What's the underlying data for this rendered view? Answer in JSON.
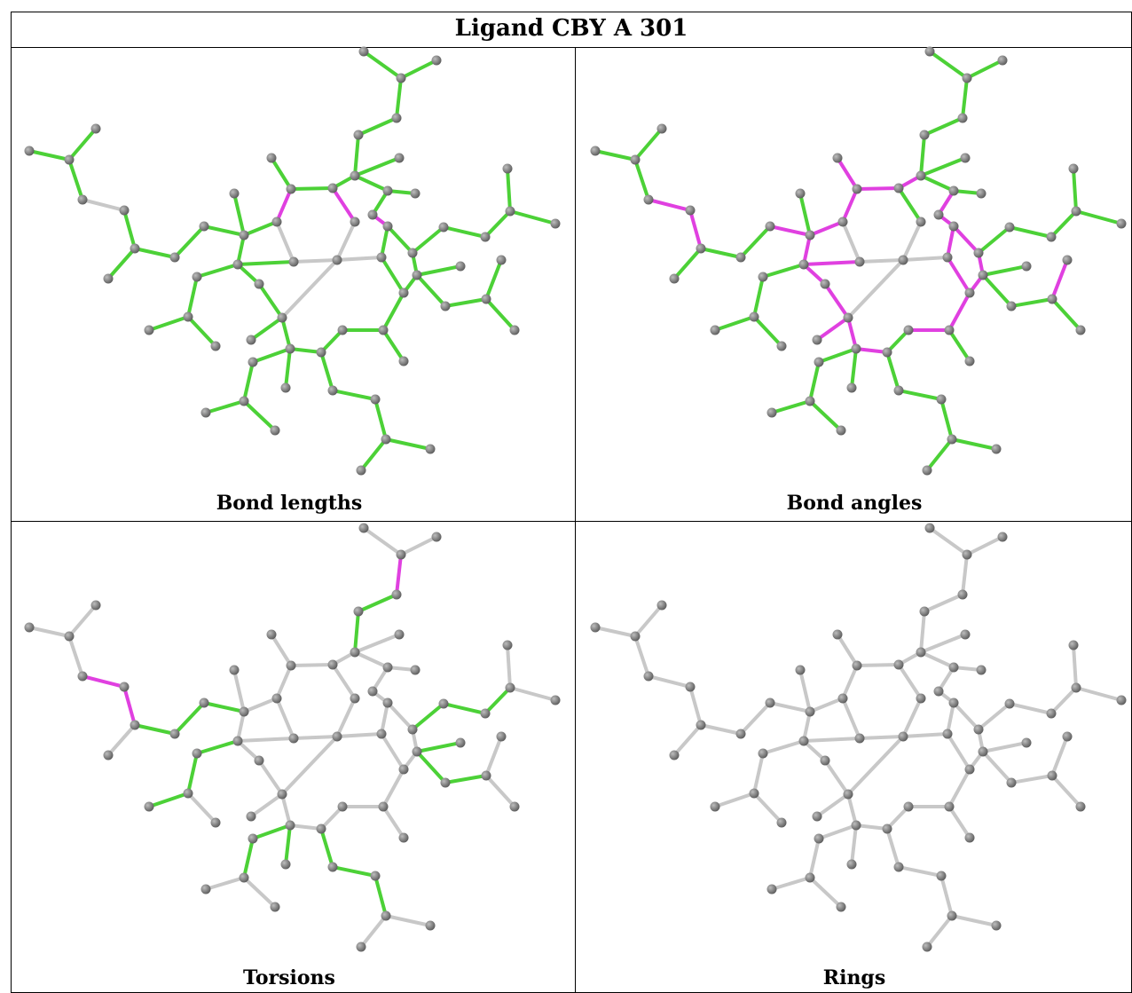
{
  "header": {
    "title": "Ligand CBY A 301"
  },
  "panels": [
    {
      "caption": "Bond lengths"
    },
    {
      "caption": "Bond angles"
    },
    {
      "caption": "Torsions"
    },
    {
      "caption": "Rings"
    }
  ]
}
